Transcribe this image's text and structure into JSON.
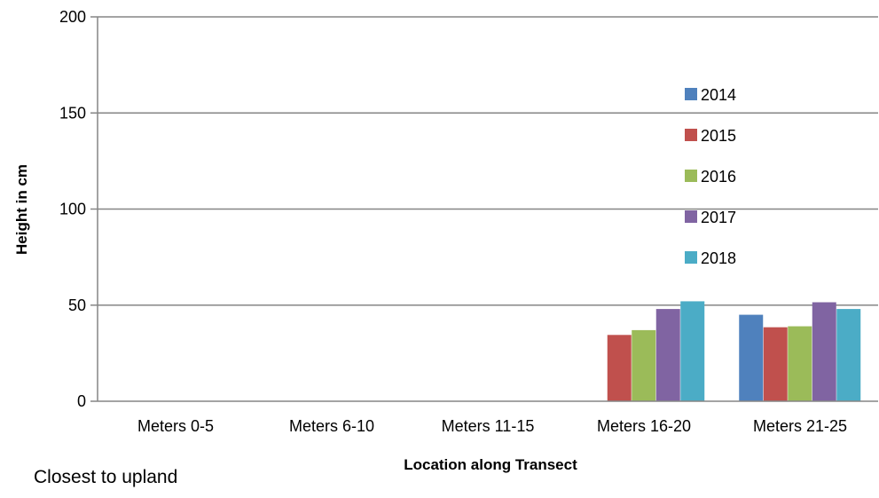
{
  "chart_data": {
    "type": "bar",
    "categories": [
      "Meters  0-5",
      "Meters  6-10",
      "Meters  11-15",
      "Meters  16-20",
      "Meters  21-25"
    ],
    "series": [
      {
        "name": "2014",
        "color": "#4F81BD",
        "values": [
          null,
          null,
          null,
          null,
          45
        ]
      },
      {
        "name": "2015",
        "color": "#C0504D",
        "values": [
          null,
          null,
          null,
          34.5,
          38.5
        ]
      },
      {
        "name": "2016",
        "color": "#9BBB59",
        "values": [
          null,
          null,
          null,
          37,
          39
        ]
      },
      {
        "name": "2017",
        "color": "#8064A2",
        "values": [
          null,
          null,
          null,
          48,
          51.5
        ]
      },
      {
        "name": "2018",
        "color": "#4BACC6",
        "values": [
          null,
          null,
          null,
          52,
          48
        ]
      }
    ],
    "xlabel": "Location along Transect",
    "ylabel": "Height in cm",
    "ylim": [
      0,
      200
    ],
    "yticks": [
      0,
      50,
      100,
      150,
      200
    ],
    "grid": true,
    "legend_position": "right"
  },
  "annotation": "Closest to upland"
}
